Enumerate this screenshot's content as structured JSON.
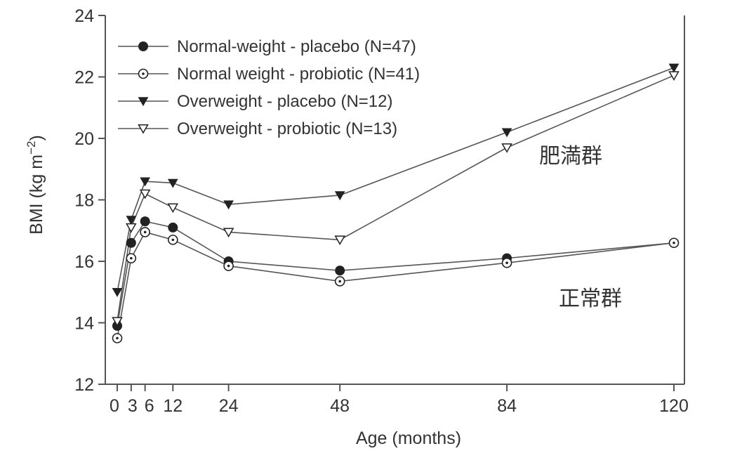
{
  "chart_data": {
    "type": "line",
    "title": "",
    "xlabel": "Age (months)",
    "ylabel_main": "BMI (kg m",
    "ylabel_sup": "−2",
    "ylabel_close": ")",
    "x": [
      0,
      3,
      6,
      12,
      24,
      48,
      84,
      120
    ],
    "x_tick_labels": [
      "0",
      "3",
      "6",
      "12",
      "24",
      "48",
      "84",
      "120"
    ],
    "xlim": [
      0,
      120
    ],
    "ylim": [
      12,
      24
    ],
    "y_ticks": [
      12,
      14,
      16,
      18,
      20,
      22,
      24
    ],
    "grid": false,
    "legend_position": "top-left",
    "series": [
      {
        "name": "Normal-weight - placebo (N=47)",
        "marker": "filled-circle",
        "values": [
          13.9,
          16.6,
          17.3,
          17.1,
          16.0,
          15.7,
          16.1,
          16.6
        ]
      },
      {
        "name": "Normal weight - probiotic (N=41)",
        "marker": "open-circle",
        "values": [
          13.5,
          16.1,
          16.95,
          16.7,
          15.85,
          15.35,
          15.95,
          16.6
        ]
      },
      {
        "name": "Overweight - placebo (N=12)",
        "marker": "filled-triangle-down",
        "values": [
          15.0,
          17.35,
          18.6,
          18.55,
          17.85,
          18.15,
          20.2,
          22.3
        ]
      },
      {
        "name": "Overweight - probiotic (N=13)",
        "marker": "open-triangle-down",
        "values": [
          14.05,
          17.1,
          18.2,
          17.75,
          16.95,
          16.7,
          19.7,
          22.05
        ]
      }
    ],
    "annotations": [
      "肥満群",
      "正常群"
    ]
  },
  "colors": {
    "line": "#555555",
    "axis": "#555555",
    "marker": "#222222",
    "open_marker_fill": "#ffffff"
  }
}
